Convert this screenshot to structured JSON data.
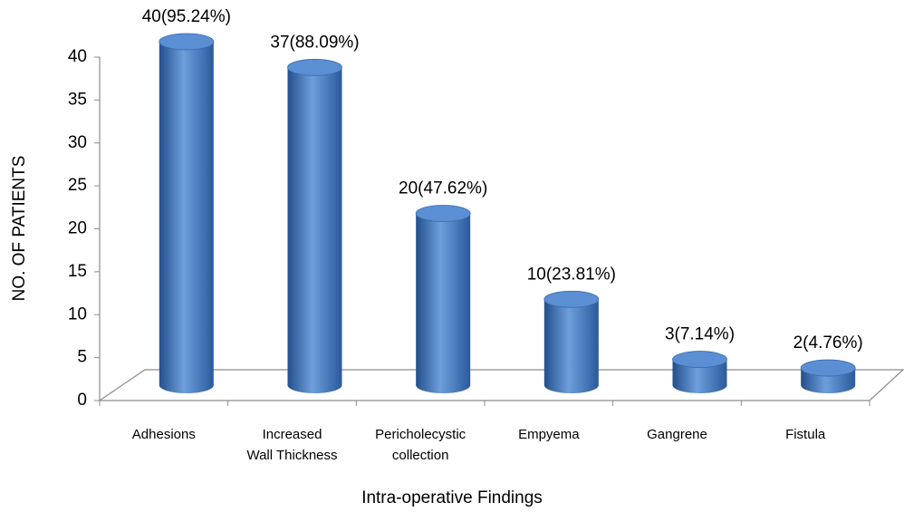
{
  "chart_data": {
    "type": "bar3d",
    "categories": [
      "Adhesions",
      "Increased Wall Thickness",
      "Pericholecystic collection",
      "Empyema",
      "Gangrene",
      "Fistula"
    ],
    "values": [
      40,
      37,
      20,
      10,
      3,
      2
    ],
    "value_labels": [
      "40(95.24%)",
      "37(88.09%)",
      "20(47.62%)",
      "10(23.81%)",
      "3(7.14%)",
      "2(4.76%)"
    ],
    "color": "#4a7ebf",
    "ylim": [
      0,
      40
    ],
    "yticks": [
      0,
      5,
      10,
      15,
      20,
      25,
      30,
      35,
      40
    ],
    "y_label": "NO. OF PATIENTS",
    "x_label": "Intra-operative Findings"
  }
}
